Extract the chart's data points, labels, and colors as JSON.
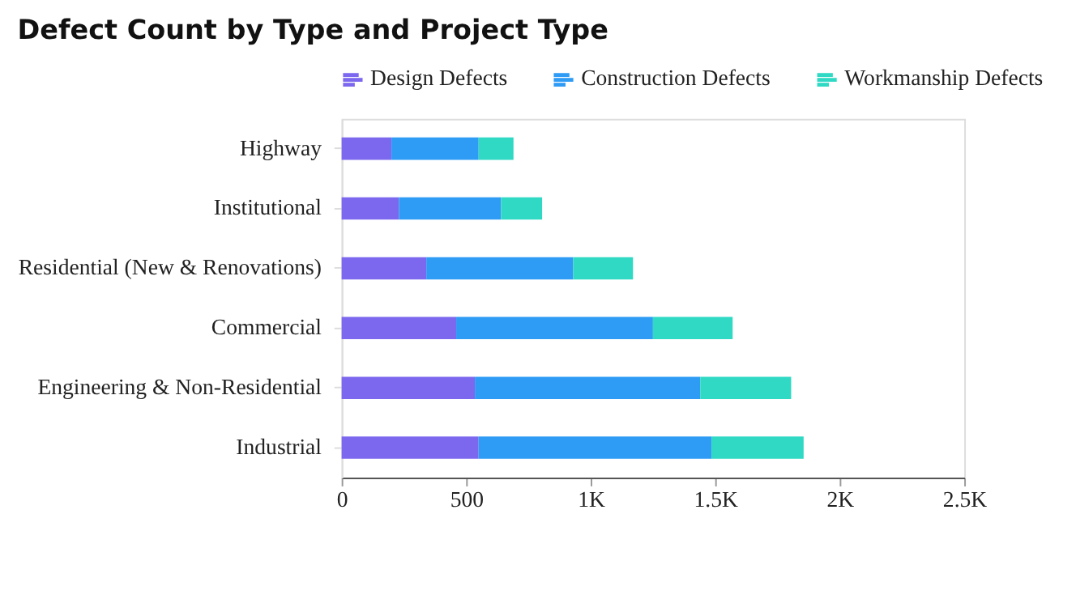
{
  "chart_data": {
    "type": "bar",
    "title": "Defect Count by Type and Project Type",
    "orientation": "horizontal",
    "stacked": true,
    "categories": [
      "Highway",
      "Institutional",
      "Residential (New & Renovations)",
      "Commercial",
      "Engineering & Non-Residential",
      "Industrial"
    ],
    "series": [
      {
        "name": "Design Defects",
        "color": "#7b68ee",
        "values": [
          200,
          230,
          340,
          460,
          535,
          550
        ]
      },
      {
        "name": "Construction Defects",
        "color": "#2e9bf5",
        "values": [
          350,
          410,
          590,
          790,
          905,
          935
        ]
      },
      {
        "name": "Workmanship Defects",
        "color": "#2fd9c4",
        "values": [
          140,
          165,
          240,
          320,
          365,
          370
        ]
      }
    ],
    "xlim": [
      0,
      2500
    ],
    "xticks": [
      0,
      500,
      {
        "value": 1000,
        "label": "1K"
      },
      {
        "value": 1500,
        "label": "1.5K"
      },
      {
        "value": 2000,
        "label": "2K"
      },
      {
        "value": 2500,
        "label": "2.5K"
      }
    ],
    "grid": false,
    "legend": "top"
  }
}
